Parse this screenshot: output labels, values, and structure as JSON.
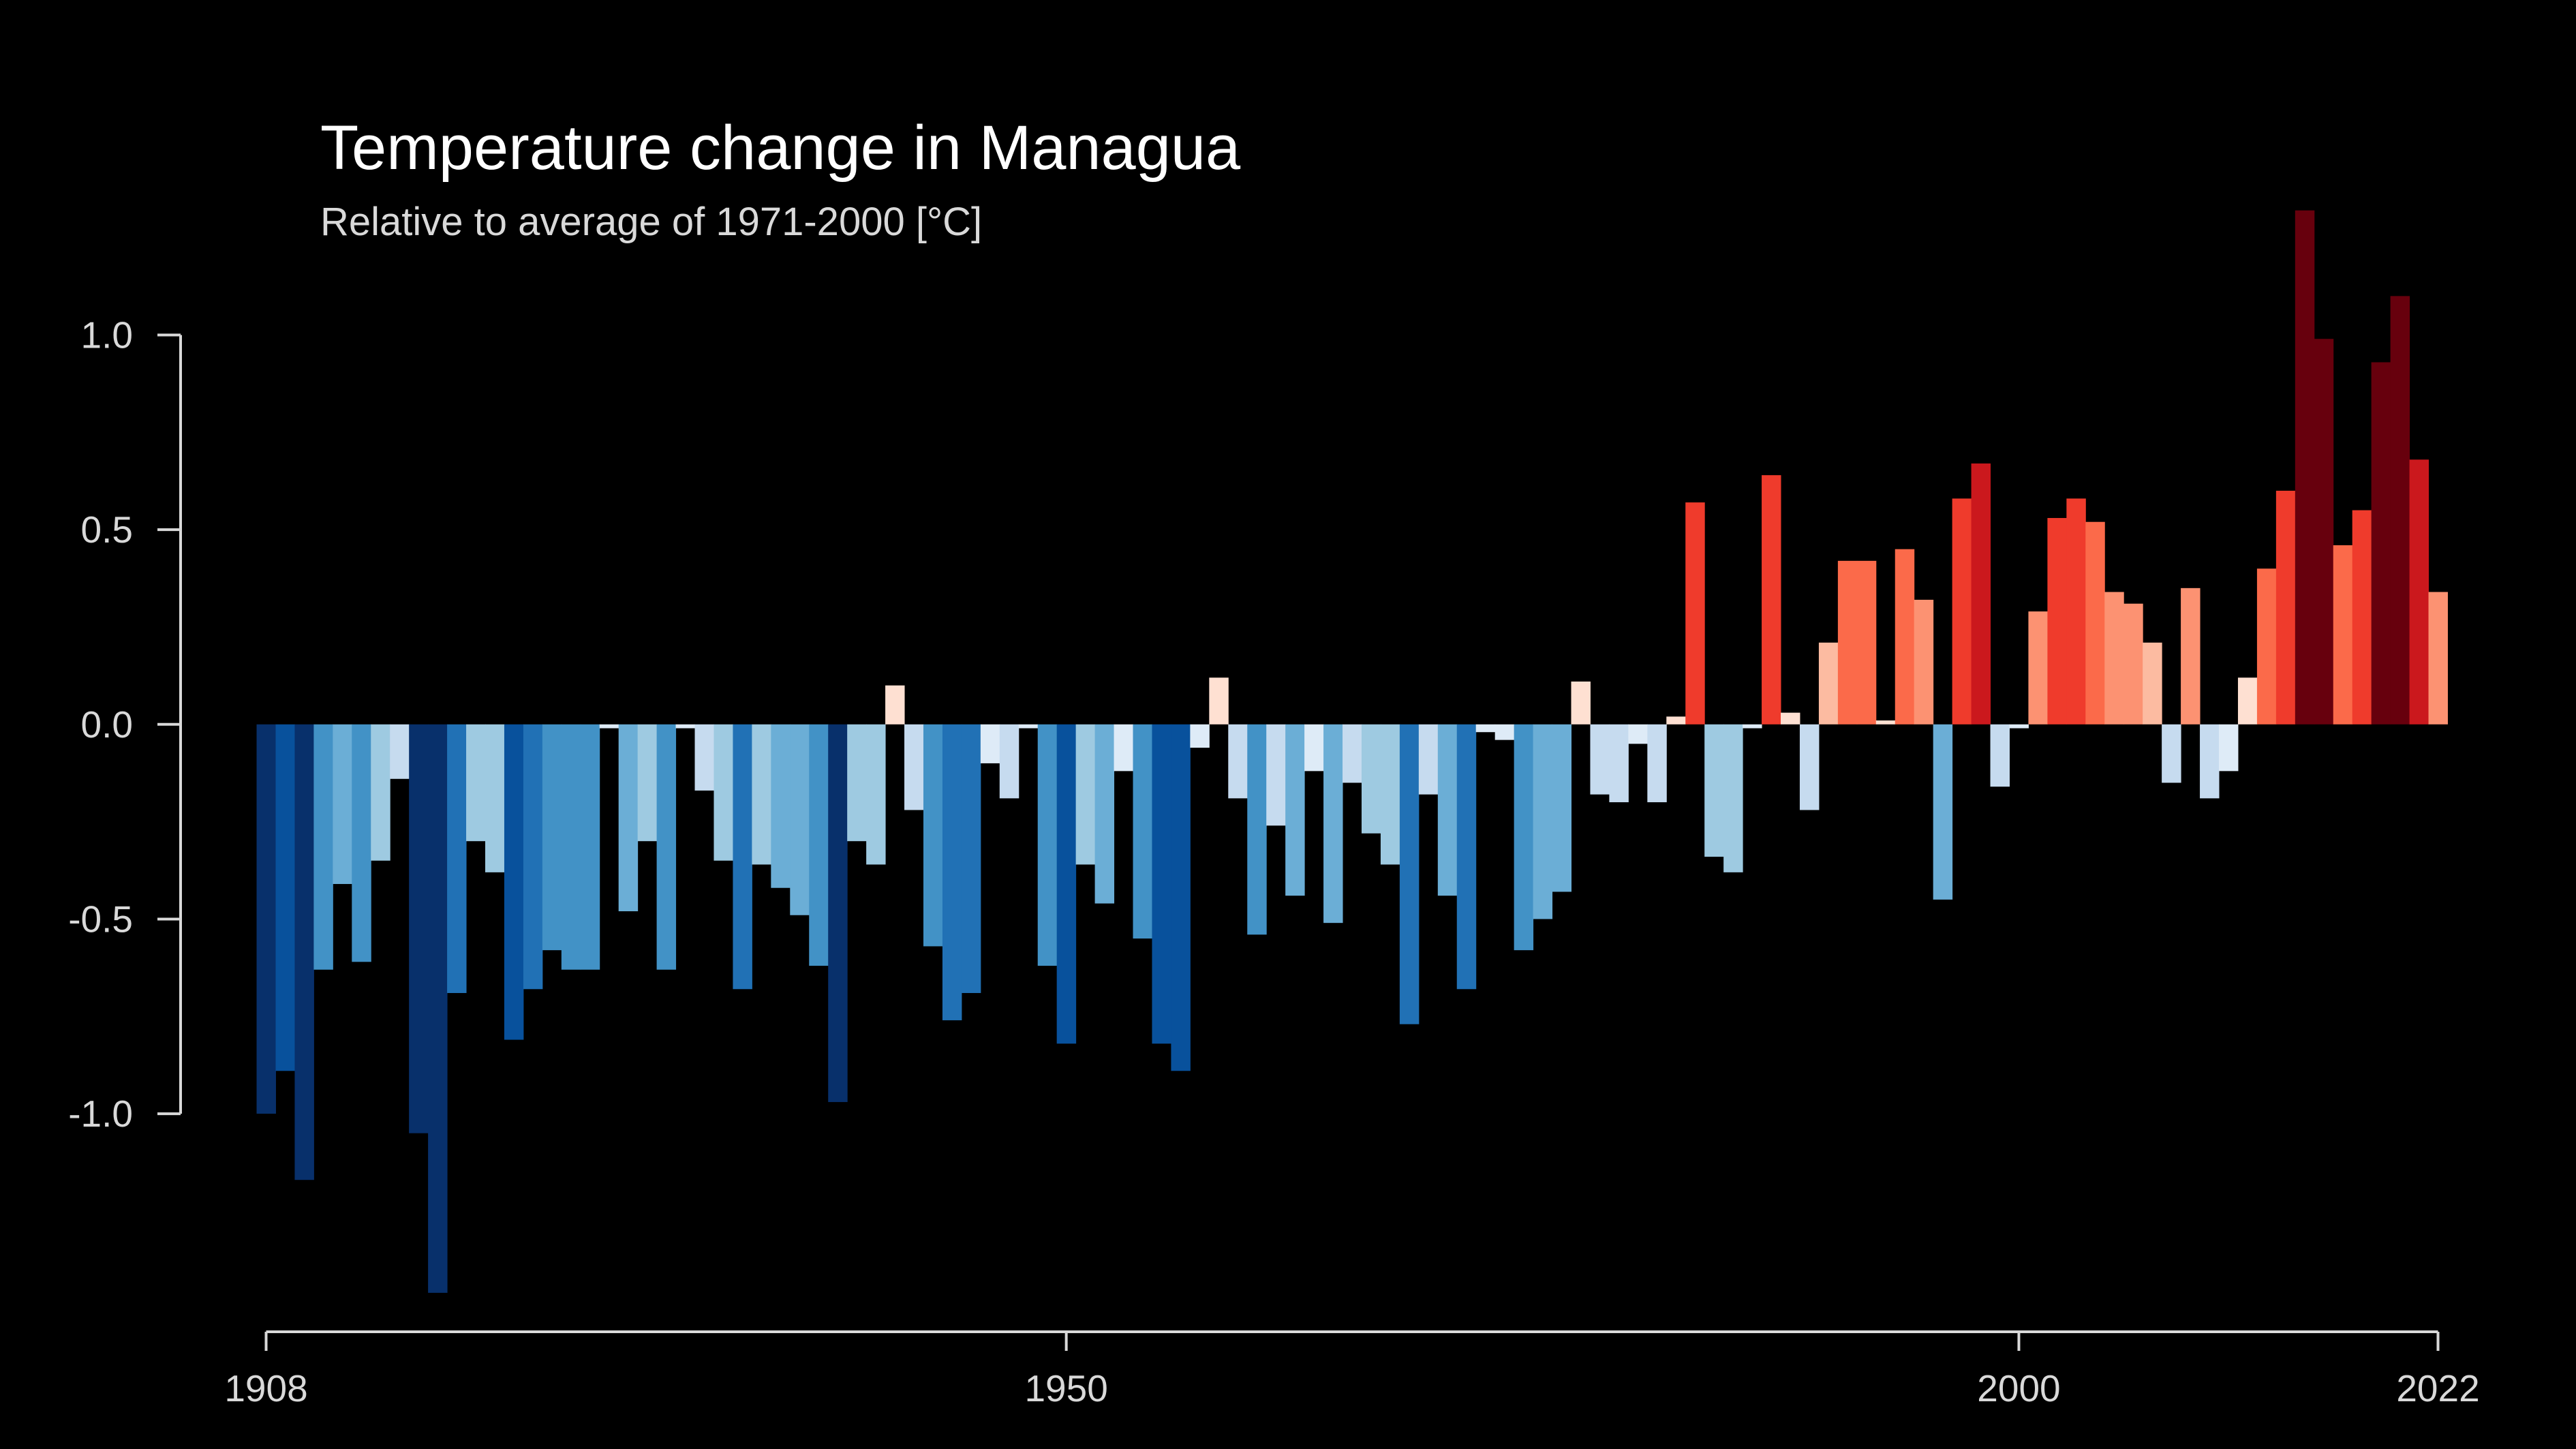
{
  "chart_data": {
    "type": "bar",
    "title": "Temperature change in Managua",
    "subtitle": "Relative to average of 1971-2000  [°C]",
    "x": [
      1908,
      1909,
      1910,
      1911,
      1912,
      1913,
      1914,
      1915,
      1916,
      1917,
      1918,
      1919,
      1920,
      1921,
      1922,
      1923,
      1924,
      1925,
      1926,
      1927,
      1928,
      1929,
      1930,
      1931,
      1932,
      1933,
      1934,
      1935,
      1936,
      1937,
      1938,
      1939,
      1940,
      1941,
      1942,
      1943,
      1944,
      1945,
      1946,
      1947,
      1948,
      1949,
      1950,
      1951,
      1952,
      1953,
      1954,
      1955,
      1956,
      1957,
      1958,
      1959,
      1960,
      1961,
      1962,
      1963,
      1964,
      1965,
      1966,
      1967,
      1968,
      1969,
      1970,
      1971,
      1972,
      1973,
      1974,
      1975,
      1976,
      1977,
      1978,
      1979,
      1980,
      1981,
      1982,
      1983,
      1984,
      1985,
      1986,
      1987,
      1988,
      1989,
      1990,
      1991,
      1992,
      1993,
      1994,
      1995,
      1996,
      1997,
      1998,
      1999,
      2000,
      2001,
      2002,
      2003,
      2004,
      2005,
      2006,
      2007,
      2008,
      2009,
      2010,
      2011,
      2012,
      2013,
      2014,
      2015,
      2016,
      2017,
      2018,
      2019,
      2020,
      2021,
      2022
    ],
    "values": [
      -1.0,
      -0.89,
      -1.17,
      -0.63,
      -0.41,
      -0.61,
      -0.35,
      -0.14,
      -1.05,
      -1.46,
      -0.69,
      -0.3,
      -0.38,
      -0.81,
      -0.68,
      -0.58,
      -0.63,
      -0.63,
      -0.01,
      -0.48,
      -0.3,
      -0.63,
      -0.01,
      -0.17,
      -0.35,
      -0.68,
      -0.36,
      -0.42,
      -0.49,
      -0.62,
      -0.97,
      -0.3,
      -0.36,
      0.1,
      -0.22,
      -0.57,
      -0.76,
      -0.69,
      -0.1,
      -0.19,
      -0.01,
      -0.62,
      -0.82,
      -0.36,
      -0.46,
      -0.12,
      -0.55,
      -0.82,
      -0.89,
      -0.06,
      0.12,
      -0.19,
      -0.54,
      -0.26,
      -0.44,
      -0.12,
      -0.51,
      -0.15,
      -0.28,
      -0.36,
      -0.77,
      -0.18,
      -0.44,
      -0.68,
      -0.02,
      -0.04,
      -0.58,
      -0.5,
      -0.43,
      0.11,
      -0.18,
      -0.2,
      -0.05,
      -0.2,
      0.02,
      0.57,
      -0.34,
      -0.38,
      -0.01,
      0.64,
      0.03,
      -0.22,
      0.21,
      0.42,
      0.42,
      0.01,
      0.45,
      0.32,
      -0.45,
      0.58,
      0.67,
      -0.16,
      -0.01,
      0.29,
      0.53,
      0.58,
      0.52,
      0.34,
      0.31,
      0.21,
      -0.15,
      0.35,
      -0.19,
      -0.12,
      0.12,
      0.4,
      0.6,
      1.32,
      0.99,
      0.46,
      0.55,
      0.93,
      1.1,
      0.68,
      0.34
    ],
    "colormap": [
      "#08306b",
      "#08519c",
      "#2171b5",
      "#4292c6",
      "#6baed6",
      "#9ecae1",
      "#c6dbef",
      "#deebf7",
      "#fee0d2",
      "#fcbba1",
      "#fc9272",
      "#fb6a4a",
      "#ef3b2c",
      "#cb181d",
      "#a50f15",
      "#67000d"
    ],
    "color_limits": [
      -1.05,
      1.05
    ],
    "xlim": [
      1908,
      2022
    ],
    "xticks": [
      1908,
      1950,
      2000,
      2022
    ],
    "ylim": [
      -1.56,
      1.4
    ],
    "yticks": [
      {
        "value": 1,
        "label": "1.0"
      },
      0.5,
      {
        "value": 0,
        "label": "0.0"
      },
      -0.5,
      {
        "value": -1,
        "label": "-1.0"
      }
    ],
    "grid": false
  }
}
